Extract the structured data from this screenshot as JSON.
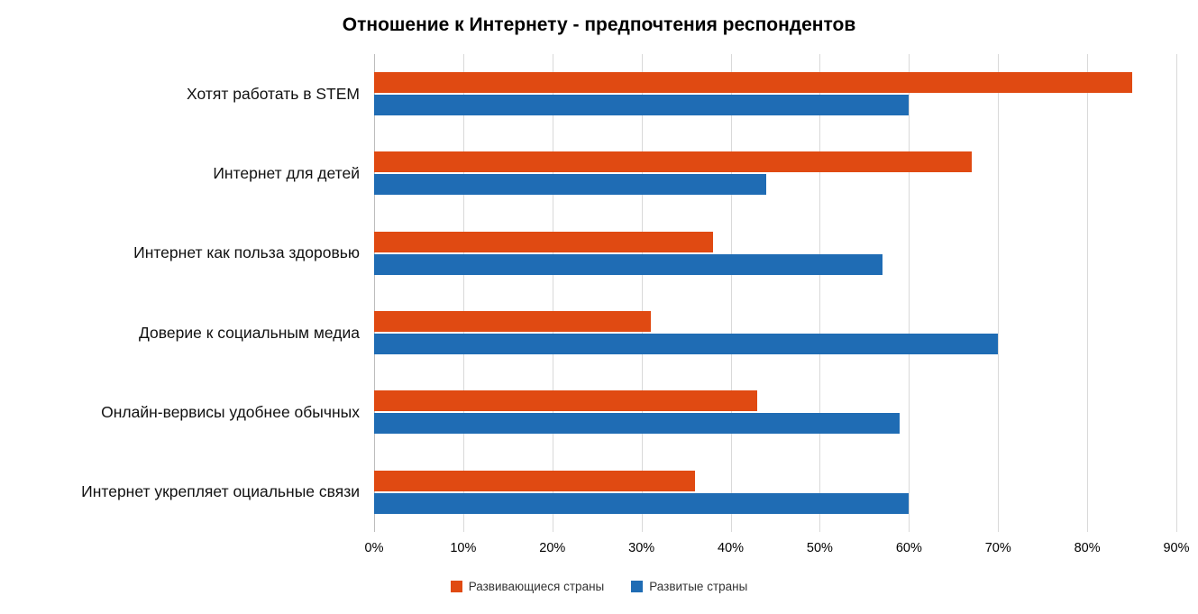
{
  "chart_data": {
    "type": "bar",
    "orientation": "horizontal",
    "title": "Отношение к Интернету - предпочтения респондентов",
    "categories": [
      "Хотят работать в STEM",
      "Интернет для детей",
      "Интернет как польза здоровью",
      "Доверие к социальным медиа",
      "Онлайн-вервисы удобнее обычных",
      "Интернет укрепляет оциальные связи"
    ],
    "series": [
      {
        "name": "Развивающиеся страны",
        "color": "#E04A12",
        "values": [
          85,
          67,
          38,
          31,
          43,
          36
        ]
      },
      {
        "name": "Развитые страны",
        "color": "#1F6CB4",
        "values": [
          60,
          44,
          57,
          70,
          59,
          60
        ]
      }
    ],
    "x_ticks": [
      "0%",
      "10%",
      "20%",
      "30%",
      "40%",
      "50%",
      "60%",
      "70%",
      "80%",
      "90%"
    ],
    "xlim": [
      0,
      90
    ],
    "grid": true,
    "gridline_color": "#d9d9d9",
    "legend_position": "bottom"
  }
}
